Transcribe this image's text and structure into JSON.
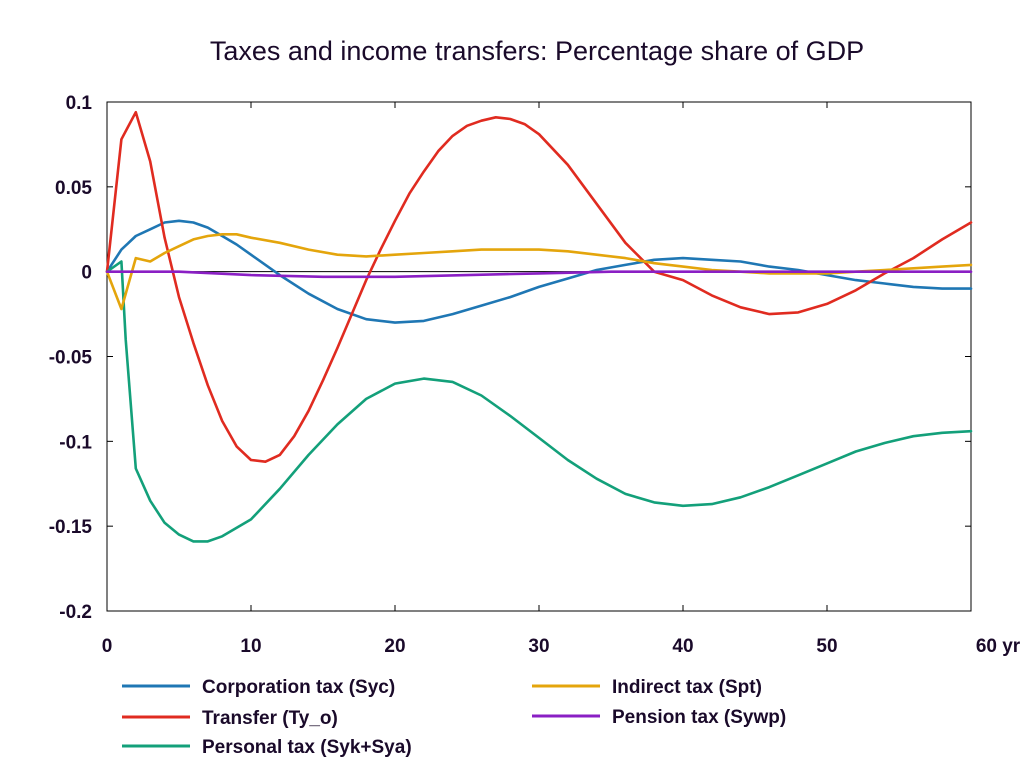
{
  "chart_data": {
    "type": "line",
    "title": "Taxes and income transfers: Percentage share of GDP",
    "xlabel": "",
    "ylabel": "",
    "xlim": [
      0,
      60
    ],
    "ylim": [
      -0.2,
      0.1
    ],
    "x_ticks": [
      0,
      10,
      20,
      30,
      40,
      50,
      60
    ],
    "x_tick_labels": [
      "0",
      "10",
      "20",
      "30",
      "40",
      "50",
      "60 yr"
    ],
    "y_ticks": [
      0.1,
      0.05,
      0,
      -0.05,
      -0.1,
      -0.15,
      -0.2
    ],
    "y_tick_labels": [
      "0.1",
      "0.05",
      "0",
      "-0.05",
      "-0.1",
      "-0.15",
      "-0.2"
    ],
    "grid": false,
    "legend_position": "bottom",
    "series": [
      {
        "name": "Corporation tax (Syc)",
        "color": "#1f77b4",
        "points": [
          [
            0,
            0
          ],
          [
            1,
            0.013
          ],
          [
            2,
            0.021
          ],
          [
            3,
            0.025
          ],
          [
            4,
            0.029
          ],
          [
            5,
            0.03
          ],
          [
            6,
            0.029
          ],
          [
            7,
            0.026
          ],
          [
            8,
            0.021
          ],
          [
            9,
            0.016
          ],
          [
            10,
            0.01
          ],
          [
            12,
            -0.002
          ],
          [
            14,
            -0.013
          ],
          [
            16,
            -0.022
          ],
          [
            18,
            -0.028
          ],
          [
            20,
            -0.03
          ],
          [
            22,
            -0.029
          ],
          [
            24,
            -0.025
          ],
          [
            26,
            -0.02
          ],
          [
            28,
            -0.015
          ],
          [
            30,
            -0.009
          ],
          [
            32,
            -0.004
          ],
          [
            34,
            0.001
          ],
          [
            36,
            0.004
          ],
          [
            38,
            0.007
          ],
          [
            40,
            0.008
          ],
          [
            42,
            0.007
          ],
          [
            44,
            0.006
          ],
          [
            46,
            0.003
          ],
          [
            48,
            0.001
          ],
          [
            50,
            -0.002
          ],
          [
            52,
            -0.005
          ],
          [
            54,
            -0.007
          ],
          [
            56,
            -0.009
          ],
          [
            58,
            -0.01
          ],
          [
            60,
            -0.01
          ]
        ]
      },
      {
        "name": "Transfer (Ty_o)",
        "color": "#e02b20",
        "points": [
          [
            0,
            0
          ],
          [
            1,
            0.078
          ],
          [
            2,
            0.094
          ],
          [
            3,
            0.065
          ],
          [
            4,
            0.02
          ],
          [
            5,
            -0.015
          ],
          [
            6,
            -0.042
          ],
          [
            7,
            -0.067
          ],
          [
            8,
            -0.088
          ],
          [
            9,
            -0.103
          ],
          [
            10,
            -0.111
          ],
          [
            11,
            -0.112
          ],
          [
            12,
            -0.108
          ],
          [
            13,
            -0.097
          ],
          [
            14,
            -0.082
          ],
          [
            15,
            -0.064
          ],
          [
            16,
            -0.045
          ],
          [
            17,
            -0.025
          ],
          [
            18,
            -0.005
          ],
          [
            19,
            0.013
          ],
          [
            20,
            0.03
          ],
          [
            21,
            0.046
          ],
          [
            22,
            0.059
          ],
          [
            23,
            0.071
          ],
          [
            24,
            0.08
          ],
          [
            25,
            0.086
          ],
          [
            26,
            0.089
          ],
          [
            27,
            0.091
          ],
          [
            28,
            0.09
          ],
          [
            29,
            0.087
          ],
          [
            30,
            0.081
          ],
          [
            32,
            0.063
          ],
          [
            34,
            0.04
          ],
          [
            36,
            0.017
          ],
          [
            38,
            0.0
          ],
          [
            40,
            -0.005
          ],
          [
            42,
            -0.014
          ],
          [
            44,
            -0.021
          ],
          [
            46,
            -0.025
          ],
          [
            48,
            -0.024
          ],
          [
            50,
            -0.019
          ],
          [
            52,
            -0.011
          ],
          [
            54,
            -0.001
          ],
          [
            56,
            0.008
          ],
          [
            58,
            0.019
          ],
          [
            60,
            0.029
          ]
        ]
      },
      {
        "name": "Personal tax (Syk+Sya)",
        "color": "#13a07a",
        "points": [
          [
            0,
            0
          ],
          [
            1,
            0.006
          ],
          [
            1.3,
            -0.04
          ],
          [
            2,
            -0.116
          ],
          [
            3,
            -0.135
          ],
          [
            4,
            -0.148
          ],
          [
            5,
            -0.155
          ],
          [
            6,
            -0.159
          ],
          [
            7,
            -0.159
          ],
          [
            8,
            -0.156
          ],
          [
            10,
            -0.146
          ],
          [
            12,
            -0.128
          ],
          [
            14,
            -0.108
          ],
          [
            16,
            -0.09
          ],
          [
            18,
            -0.075
          ],
          [
            20,
            -0.066
          ],
          [
            22,
            -0.063
          ],
          [
            24,
            -0.065
          ],
          [
            26,
            -0.073
          ],
          [
            28,
            -0.085
          ],
          [
            30,
            -0.098
          ],
          [
            32,
            -0.111
          ],
          [
            34,
            -0.122
          ],
          [
            36,
            -0.131
          ],
          [
            38,
            -0.136
          ],
          [
            40,
            -0.138
          ],
          [
            42,
            -0.137
          ],
          [
            44,
            -0.133
          ],
          [
            46,
            -0.127
          ],
          [
            48,
            -0.12
          ],
          [
            50,
            -0.113
          ],
          [
            52,
            -0.106
          ],
          [
            54,
            -0.101
          ],
          [
            56,
            -0.097
          ],
          [
            58,
            -0.095
          ],
          [
            60,
            -0.094
          ]
        ]
      },
      {
        "name": "Indirect tax (Spt)",
        "color": "#e4a50c",
        "points": [
          [
            0,
            0
          ],
          [
            1,
            -0.022
          ],
          [
            2,
            0.008
          ],
          [
            3,
            0.006
          ],
          [
            4,
            0.011
          ],
          [
            5,
            0.015
          ],
          [
            6,
            0.019
          ],
          [
            7,
            0.021
          ],
          [
            8,
            0.022
          ],
          [
            9,
            0.022
          ],
          [
            10,
            0.02
          ],
          [
            12,
            0.017
          ],
          [
            14,
            0.013
          ],
          [
            16,
            0.01
          ],
          [
            18,
            0.009
          ],
          [
            20,
            0.01
          ],
          [
            22,
            0.011
          ],
          [
            24,
            0.012
          ],
          [
            26,
            0.013
          ],
          [
            28,
            0.013
          ],
          [
            30,
            0.013
          ],
          [
            32,
            0.012
          ],
          [
            34,
            0.01
          ],
          [
            36,
            0.008
          ],
          [
            38,
            0.005
          ],
          [
            40,
            0.003
          ],
          [
            42,
            0.001
          ],
          [
            44,
            0.0
          ],
          [
            46,
            -0.001
          ],
          [
            48,
            -0.001
          ],
          [
            50,
            -0.001
          ],
          [
            52,
            0.0
          ],
          [
            54,
            0.001
          ],
          [
            56,
            0.002
          ],
          [
            58,
            0.003
          ],
          [
            60,
            0.004
          ]
        ]
      },
      {
        "name": "Pension tax (Sywp)",
        "color": "#8a1fc4",
        "points": [
          [
            0,
            0
          ],
          [
            5,
            0
          ],
          [
            10,
            -0.002
          ],
          [
            15,
            -0.003
          ],
          [
            20,
            -0.003
          ],
          [
            25,
            -0.002
          ],
          [
            30,
            -0.001
          ],
          [
            35,
            0
          ],
          [
            40,
            0
          ],
          [
            45,
            0
          ],
          [
            50,
            0
          ],
          [
            55,
            0
          ],
          [
            60,
            0
          ]
        ]
      }
    ]
  }
}
